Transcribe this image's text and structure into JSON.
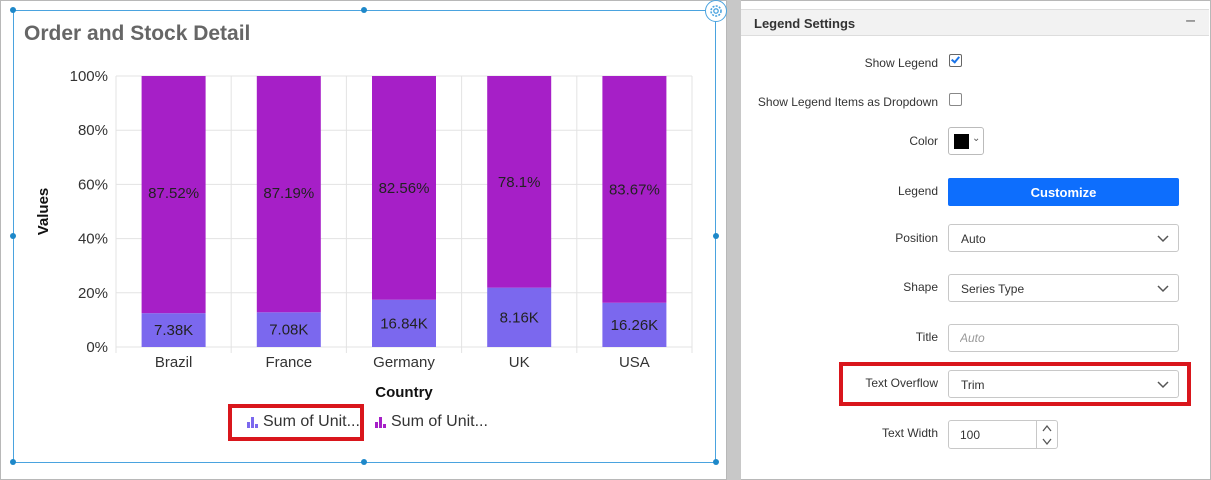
{
  "widget": {
    "title": "Order and Stock Detail"
  },
  "chart_data": {
    "type": "bar",
    "stacked": "100%",
    "title": "Order and Stock Detail",
    "xlabel": "Country",
    "ylabel": "Values",
    "categories": [
      "Brazil",
      "France",
      "Germany",
      "UK",
      "USA"
    ],
    "y_ticks": [
      "0%",
      "20%",
      "40%",
      "60%",
      "80%",
      "100%"
    ],
    "ylim": [
      0,
      100
    ],
    "series": [
      {
        "name": "Sum of Unit...",
        "color": "#7b68ee",
        "values_percent": [
          12.48,
          12.81,
          17.44,
          21.9,
          16.33
        ],
        "labels": [
          "7.38K",
          "7.08K",
          "16.84K",
          "8.16K",
          "16.26K"
        ]
      },
      {
        "name": "Sum of Unit...",
        "color": "#a61fc7",
        "values_percent": [
          87.52,
          87.19,
          82.56,
          78.1,
          83.67
        ],
        "labels": [
          "87.52%",
          "87.19%",
          "82.56%",
          "78.1%",
          "83.67%"
        ]
      }
    ],
    "grid": true,
    "legend_position": "bottom"
  },
  "panel": {
    "section_title": "Legend Settings",
    "collapse_symbol": "–",
    "show_legend": {
      "label": "Show Legend",
      "checked": true
    },
    "dropdown_legend": {
      "label": "Show Legend Items as Dropdown",
      "checked": false
    },
    "color": {
      "label": "Color",
      "value": "#000000"
    },
    "legend": {
      "label": "Legend",
      "button": "Customize"
    },
    "position": {
      "label": "Position",
      "value": "Auto"
    },
    "shape": {
      "label": "Shape",
      "value": "Series Type"
    },
    "title": {
      "label": "Title",
      "placeholder": "Auto"
    },
    "text_overflow": {
      "label": "Text Overflow",
      "value": "Trim"
    },
    "text_width": {
      "label": "Text Width",
      "value": "100"
    }
  },
  "colors": {
    "accent_blue": "#0d6efd",
    "selection_border": "#4aa3df",
    "highlight_red": "#d9161c",
    "series_1": "#7b68ee",
    "series_2": "#a61fc7"
  }
}
